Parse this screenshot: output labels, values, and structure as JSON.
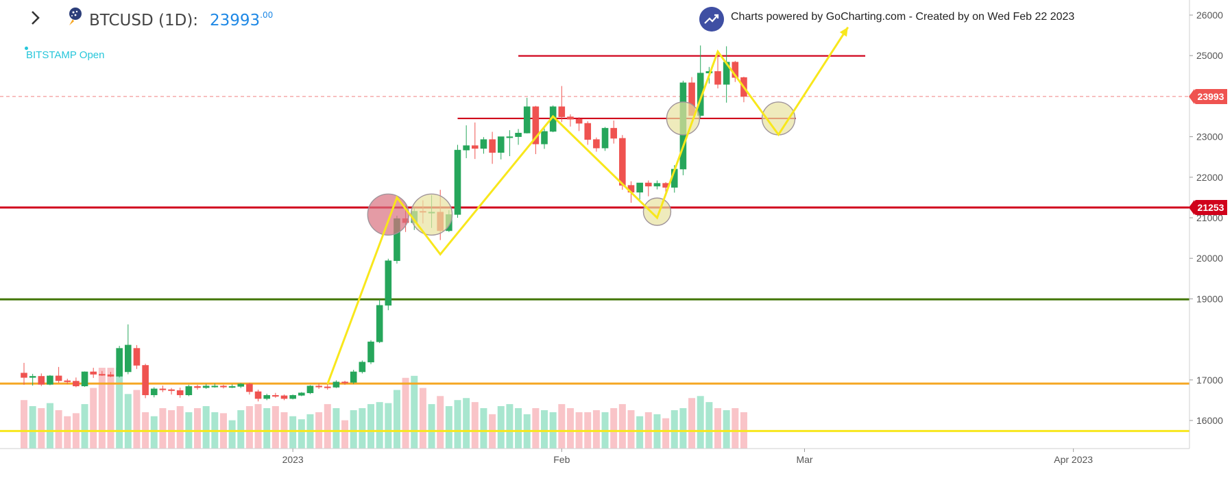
{
  "header": {
    "symbol": "BTCUSD (1D):",
    "price_main": "23993",
    "price_decimals": ".00",
    "exchange": "BITSTAMP Open",
    "branding": "Charts powered by GoCharting.com - Created by  on Wed Feb 22 2023"
  },
  "badges": {
    "last_price": "23993",
    "level": "21253"
  },
  "colors": {
    "up": "#26a65b",
    "down": "#ef5350",
    "vol_up": "#a8e6cf",
    "vol_down": "#f9c4c8",
    "red_level": "#d0021b",
    "green_level": "#417505",
    "orange_level": "#f5a623",
    "yellow_level": "#f8e71c",
    "zigzag": "#f8e71c",
    "price_line": "#f08080",
    "axis_text": "#555555"
  },
  "icons": [
    "chevron-right-icon",
    "bitcoin-symbol-icon",
    "gocharting-logo-icon"
  ],
  "chart_data": {
    "type": "candlestick",
    "title": "BTCUSD (1D)",
    "y_ticks": [
      16000,
      17000,
      19000,
      20000,
      21000,
      22000,
      23000,
      24000,
      25000,
      26000
    ],
    "ylim": [
      15300,
      26200
    ],
    "x_labels": [
      {
        "label": "2023",
        "date": "2023-01-01"
      },
      {
        "label": "Feb",
        "date": "2023-02-01"
      },
      {
        "label": "Mar",
        "date": "2023-03-01"
      },
      {
        "label": "Apr 2023",
        "date": "2023-04-01"
      }
    ],
    "dates": [
      "2022-12-01",
      "2022-12-02",
      "2022-12-03",
      "2022-12-04",
      "2022-12-05",
      "2022-12-06",
      "2022-12-07",
      "2022-12-08",
      "2022-12-09",
      "2022-12-10",
      "2022-12-11",
      "2022-12-12",
      "2022-12-13",
      "2022-12-14",
      "2022-12-15",
      "2022-12-16",
      "2022-12-17",
      "2022-12-18",
      "2022-12-19",
      "2022-12-20",
      "2022-12-21",
      "2022-12-22",
      "2022-12-23",
      "2022-12-24",
      "2022-12-25",
      "2022-12-26",
      "2022-12-27",
      "2022-12-28",
      "2022-12-29",
      "2022-12-30",
      "2022-12-31",
      "2023-01-01",
      "2023-01-02",
      "2023-01-03",
      "2023-01-04",
      "2023-01-05",
      "2023-01-06",
      "2023-01-07",
      "2023-01-08",
      "2023-01-09",
      "2023-01-10",
      "2023-01-11",
      "2023-01-12",
      "2023-01-13",
      "2023-01-14",
      "2023-01-15",
      "2023-01-16",
      "2023-01-17",
      "2023-01-18",
      "2023-01-19",
      "2023-01-20",
      "2023-01-21",
      "2023-01-22",
      "2023-01-23",
      "2023-01-24",
      "2023-01-25",
      "2023-01-26",
      "2023-01-27",
      "2023-01-28",
      "2023-01-29",
      "2023-01-30",
      "2023-01-31",
      "2023-02-01",
      "2023-02-02",
      "2023-02-03",
      "2023-02-04",
      "2023-02-05",
      "2023-02-06",
      "2023-02-07",
      "2023-02-08",
      "2023-02-09",
      "2023-02-10",
      "2023-02-11",
      "2023-02-12",
      "2023-02-13",
      "2023-02-14",
      "2023-02-15",
      "2023-02-16",
      "2023-02-17",
      "2023-02-18",
      "2023-02-19",
      "2023-02-20",
      "2023-02-21",
      "2023-02-22"
    ],
    "open": [
      17170,
      17060,
      17090,
      16890,
      17100,
      16980,
      16970,
      16850,
      17200,
      17140,
      17130,
      17090,
      17200,
      17780,
      17360,
      16630,
      16780,
      16760,
      16740,
      16630,
      16840,
      16810,
      16850,
      16850,
      16830,
      16840,
      16900,
      16710,
      16540,
      16620,
      16610,
      16540,
      16620,
      16680,
      16850,
      16830,
      16820,
      16950,
      16940,
      17200,
      17440,
      17940,
      18840,
      19940,
      20980,
      20880,
      21160,
      21140,
      21140,
      20680,
      21080,
      22670,
      22780,
      22710,
      22930,
      22610,
      23000,
      23000,
      23090,
      23740,
      22820,
      23130,
      23740,
      23490,
      23430,
      23330,
      22930,
      22720,
      23210,
      22960,
      21800,
      21630,
      21860,
      21780,
      21850,
      21750,
      22200,
      24330,
      23520,
      24570,
      24610,
      24290,
      24840,
      24460
    ],
    "close": [
      17060,
      17090,
      16890,
      17100,
      16980,
      16970,
      16850,
      17200,
      17140,
      17130,
      17090,
      17780,
      17860,
      17360,
      16630,
      16780,
      16760,
      16740,
      16630,
      16840,
      16810,
      16850,
      16850,
      16830,
      16840,
      16900,
      16710,
      16540,
      16620,
      16610,
      16540,
      16620,
      16680,
      16850,
      16830,
      16820,
      16950,
      16940,
      17200,
      17440,
      17940,
      18840,
      19940,
      20980,
      20880,
      21160,
      21140,
      21140,
      20680,
      21080,
      22670,
      22780,
      22710,
      22930,
      22610,
      23000,
      23000,
      23090,
      23740,
      22820,
      23130,
      23740,
      23490,
      23430,
      23330,
      22930,
      22720,
      23210,
      22960,
      21800,
      21630,
      21860,
      21780,
      21850,
      21750,
      22200,
      24330,
      23520,
      24570,
      24610,
      24290,
      24840,
      24460,
      23993
    ],
    "high": [
      17420,
      17150,
      17160,
      17120,
      17320,
      17030,
      17060,
      17210,
      17300,
      17220,
      17200,
      17840,
      18370,
      17860,
      17400,
      16820,
      16860,
      16800,
      16810,
      16880,
      16880,
      16900,
      16910,
      16880,
      16890,
      16920,
      16930,
      16760,
      16660,
      16680,
      16640,
      16640,
      16700,
      16870,
      16910,
      16890,
      16990,
      16980,
      17250,
      17480,
      17980,
      18980,
      19990,
      21050,
      21300,
      21250,
      21430,
      21560,
      21690,
      21190,
      22800,
      23280,
      23350,
      22990,
      23120,
      23000,
      23160,
      23190,
      23960,
      23760,
      23200,
      23770,
      24250,
      23550,
      23480,
      23380,
      22980,
      23240,
      23400,
      23040,
      21900,
      21860,
      21920,
      21920,
      21880,
      22300,
      24380,
      24470,
      25250,
      24720,
      25100,
      25230,
      24870,
      24480
    ],
    "low": [
      16880,
      16860,
      16850,
      16870,
      16930,
      16900,
      16820,
      16830,
      17050,
      17100,
      17070,
      17060,
      17140,
      17270,
      16550,
      16570,
      16700,
      16640,
      16560,
      16600,
      16760,
      16780,
      16810,
      16790,
      16800,
      16800,
      16640,
      16470,
      16500,
      16560,
      16500,
      16520,
      16600,
      16650,
      16780,
      16760,
      16800,
      16880,
      16900,
      17160,
      17390,
      17910,
      18720,
      19870,
      20650,
      20700,
      20860,
      20750,
      20450,
      20650,
      21000,
      22470,
      22450,
      22580,
      22330,
      22440,
      22520,
      22800,
      23080,
      22570,
      22700,
      23110,
      23360,
      23250,
      23140,
      22800,
      22630,
      22650,
      22830,
      21690,
      21370,
      21450,
      21530,
      21700,
      21540,
      21620,
      22050,
      23520,
      23460,
      24310,
      24190,
      23840,
      24350,
      23850
    ],
    "volume": [
      48,
      42,
      40,
      45,
      38,
      32,
      35,
      44,
      60,
      80,
      80,
      80,
      54,
      58,
      36,
      32,
      40,
      38,
      42,
      36,
      40,
      42,
      36,
      35,
      28,
      38,
      42,
      44,
      40,
      42,
      36,
      32,
      29,
      34,
      36,
      44,
      40,
      28,
      38,
      40,
      44,
      46,
      45,
      58,
      70,
      72,
      60,
      44,
      52,
      42,
      48,
      50,
      46,
      40,
      34,
      42,
      44,
      40,
      34,
      40,
      38,
      36,
      44,
      40,
      36,
      36,
      38,
      36,
      40,
      44,
      38,
      32,
      36,
      34,
      30,
      38,
      40,
      50,
      52,
      46,
      40,
      38,
      40,
      36
    ],
    "levels": [
      {
        "value": 21253,
        "color_key": "red_level"
      },
      {
        "value": 18987,
        "color_key": "green_level"
      },
      {
        "value": 16910,
        "color_key": "orange_level"
      },
      {
        "value": 15740,
        "color_key": "yellow_level"
      },
      {
        "value": 24993,
        "color_key": "red_level",
        "from": "2023-01-27",
        "to": "2023-03-08"
      },
      {
        "value": 23450,
        "color_key": "red_level",
        "from": "2023-01-20",
        "to": "2023-02-28"
      }
    ],
    "last_price": 23993,
    "zigzag": [
      {
        "date": "2023-01-05",
        "value": 16900
      },
      {
        "date": "2023-01-13",
        "value": 21500
      },
      {
        "date": "2023-01-18",
        "value": 20100
      },
      {
        "date": "2023-01-31",
        "value": 23500
      },
      {
        "date": "2023-02-12",
        "value": 21000
      },
      {
        "date": "2023-02-19",
        "value": 25100
      },
      {
        "date": "2023-02-26",
        "value": 23050
      },
      {
        "date": "2023-03-06",
        "value": 25700
      }
    ],
    "circles": [
      {
        "date": "2023-01-12",
        "value": 21080,
        "fill": "#d9707f"
      },
      {
        "date": "2023-01-17",
        "value": 21080,
        "fill": "#e8e2a0"
      },
      {
        "date": "2023-02-12",
        "value": 21150,
        "fill": "#e8e2a0"
      },
      {
        "date": "2023-02-15",
        "value": 23450,
        "fill": "#e8e2a0"
      },
      {
        "date": "2023-02-26",
        "value": 23450,
        "fill": "#e8e2a0"
      }
    ]
  }
}
